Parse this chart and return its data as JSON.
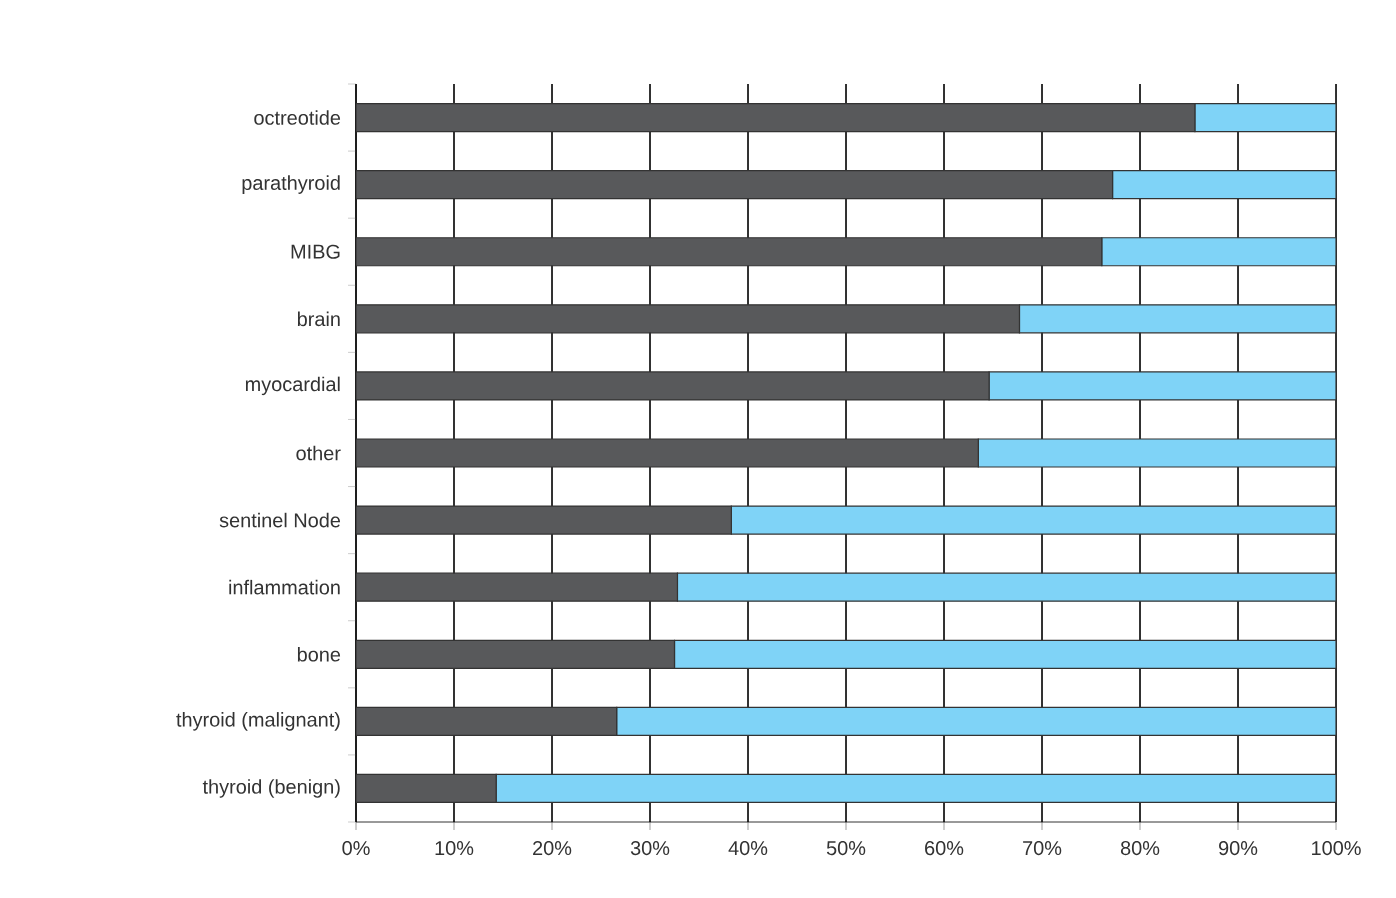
{
  "chart_data": {
    "type": "bar",
    "orientation": "horizontal",
    "stacked": true,
    "grid": "x",
    "categories": [
      "octreotide",
      "parathyroid",
      "MIBG",
      "brain",
      "myocardial",
      "other",
      "sentinel Node",
      "inflammation",
      "bone",
      "thyroid (malignant)",
      "thyroid (benign)"
    ],
    "series": [
      {
        "color": "#58595b",
        "values": [
          85.6,
          77.2,
          76.1,
          67.7,
          64.6,
          63.5,
          38.3,
          32.8,
          32.5,
          26.6,
          14.3
        ]
      },
      {
        "color": "#7fd3f7",
        "values": [
          14.4,
          22.8,
          23.9,
          32.3,
          35.4,
          36.5,
          61.7,
          67.2,
          67.5,
          73.4,
          85.7
        ]
      }
    ],
    "xlim": [
      0,
      100
    ],
    "xticks": [
      {
        "value": 0,
        "label": "0%"
      },
      {
        "value": 10,
        "label": "10%"
      },
      {
        "value": 20,
        "label": "20%"
      },
      {
        "value": 30,
        "label": "30%"
      },
      {
        "value": 40,
        "label": "40%"
      },
      {
        "value": 50,
        "label": "50%"
      },
      {
        "value": 60,
        "label": "60%"
      },
      {
        "value": 70,
        "label": "70%"
      },
      {
        "value": 80,
        "label": "80%"
      },
      {
        "value": 90,
        "label": "90%"
      },
      {
        "value": 100,
        "label": "100%"
      }
    ]
  }
}
